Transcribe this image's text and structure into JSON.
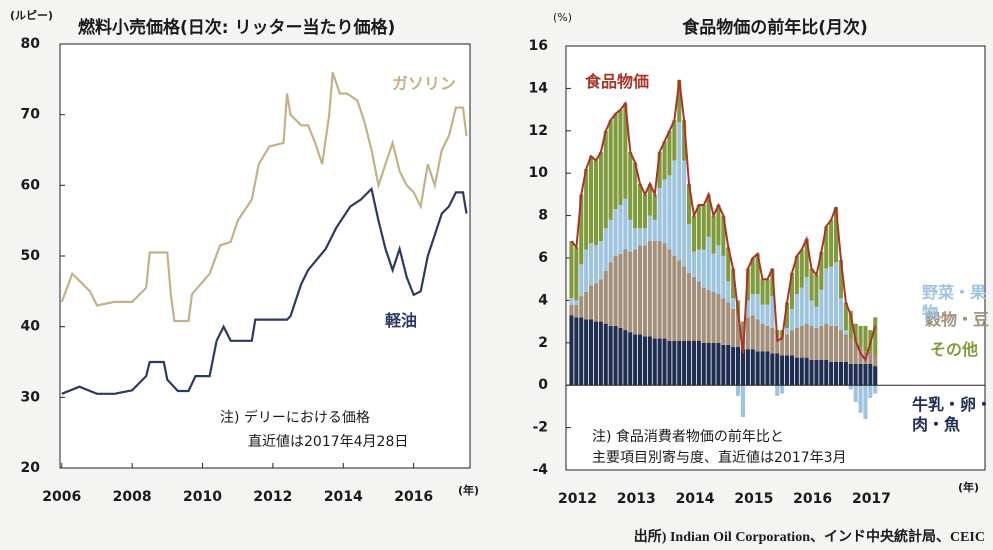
{
  "chart_data": [
    {
      "type": "line",
      "title": "燃料小売価格(日次: リッター当たり価格)",
      "y_unit": "(ルピー)",
      "x_unit": "(年)",
      "xlim": [
        2005.95,
        2017.6
      ],
      "xticks": [
        2006,
        2008,
        2010,
        2012,
        2014,
        2016
      ],
      "ylim": [
        20,
        80
      ],
      "yticks": [
        20,
        30,
        40,
        50,
        60,
        70,
        80
      ],
      "annotations": [
        "注) デリーにおける価格",
        "直近値は2017年4月28日"
      ],
      "series": [
        {
          "name": "ガソリン",
          "color": "#c5b187",
          "x": [
            2006.0,
            2006.3,
            2006.8,
            2007.0,
            2007.5,
            2008.0,
            2008.4,
            2008.5,
            2009.0,
            2009.1,
            2009.2,
            2009.6,
            2009.7,
            2010.2,
            2010.5,
            2010.8,
            2011.0,
            2011.4,
            2011.6,
            2011.9,
            2012.3,
            2012.4,
            2012.5,
            2012.8,
            2013.0,
            2013.2,
            2013.4,
            2013.6,
            2013.7,
            2013.9,
            2014.1,
            2014.4,
            2014.6,
            2014.8,
            2015.0,
            2015.2,
            2015.4,
            2015.6,
            2015.8,
            2016.0,
            2016.2,
            2016.4,
            2016.6,
            2016.8,
            2017.0,
            2017.2,
            2017.4,
            2017.5
          ],
          "values": [
            43.5,
            47.5,
            45,
            43,
            43.5,
            43.5,
            45.5,
            50.5,
            50.5,
            44.5,
            40.8,
            40.8,
            44.6,
            47.5,
            51.5,
            52,
            55,
            58,
            63,
            65.5,
            66,
            73,
            70,
            68.5,
            68.5,
            66,
            63,
            70,
            76,
            73,
            73,
            72,
            69,
            65,
            60,
            63,
            66,
            62,
            60,
            59,
            57,
            63,
            60,
            65,
            67,
            71,
            71,
            67
          ]
        },
        {
          "name": "軽油",
          "color": "#2c3a63",
          "x": [
            2006.0,
            2006.5,
            2007.0,
            2007.5,
            2008.0,
            2008.4,
            2008.5,
            2008.9,
            2009.0,
            2009.3,
            2009.6,
            2009.8,
            2010.2,
            2010.4,
            2010.6,
            2010.8,
            2011.4,
            2011.5,
            2012.4,
            2012.5,
            2012.8,
            2013.0,
            2013.5,
            2013.8,
            2014.2,
            2014.5,
            2014.8,
            2015.0,
            2015.2,
            2015.4,
            2015.6,
            2015.8,
            2016.0,
            2016.2,
            2016.4,
            2016.6,
            2016.8,
            2017.0,
            2017.2,
            2017.4,
            2017.5
          ],
          "values": [
            30.5,
            31.5,
            30.5,
            30.5,
            31,
            33,
            35,
            35,
            32.5,
            30.9,
            30.9,
            33,
            33,
            38,
            40,
            38,
            38,
            41,
            41,
            41.5,
            46,
            48,
            51,
            54,
            57,
            58,
            59.5,
            55,
            51,
            48,
            51,
            47,
            44.5,
            45,
            50,
            53,
            56,
            57,
            59,
            59,
            56
          ]
        }
      ]
    },
    {
      "type": "bar",
      "stacked": true,
      "title": "食品物価の前年比(月次)",
      "y_unit": "(%)",
      "x_unit": "(年)",
      "ylim": [
        -4,
        16
      ],
      "yticks": [
        -4,
        -2,
        0,
        2,
        4,
        6,
        8,
        10,
        12,
        14,
        16
      ],
      "annotations": [
        "注) 食品消費者物価の前年比と",
        "主要項目別寄与度、直近値は2017年3月"
      ],
      "categories": [
        "2012",
        null,
        null,
        null,
        null,
        null,
        null,
        null,
        null,
        null,
        null,
        null,
        "2013",
        null,
        null,
        null,
        null,
        null,
        null,
        null,
        null,
        null,
        null,
        null,
        "2014",
        null,
        null,
        null,
        null,
        null,
        null,
        null,
        null,
        null,
        null,
        null,
        "2015",
        null,
        null,
        null,
        null,
        null,
        null,
        null,
        null,
        null,
        null,
        null,
        "2016",
        null,
        null,
        null,
        null,
        null,
        null,
        null,
        null,
        null,
        null,
        null,
        "2017",
        null,
        null
      ],
      "series": [
        {
          "name": "牛乳・卵・肉・魚",
          "color": "#1f2d50",
          "values": [
            3.3,
            3.2,
            3.2,
            3.1,
            3.1,
            3.0,
            3.0,
            2.9,
            2.8,
            2.8,
            2.7,
            2.6,
            2.5,
            2.4,
            2.4,
            2.3,
            2.3,
            2.2,
            2.2,
            2.2,
            2.1,
            2.1,
            2.1,
            2.1,
            2.1,
            2.1,
            2.1,
            2.0,
            2.0,
            2.0,
            2.0,
            1.9,
            1.9,
            1.8,
            1.8,
            1.7,
            1.7,
            1.7,
            1.6,
            1.6,
            1.6,
            1.5,
            1.5,
            1.4,
            1.4,
            1.4,
            1.3,
            1.3,
            1.3,
            1.2,
            1.2,
            1.2,
            1.2,
            1.1,
            1.1,
            1.1,
            1.1,
            1.0,
            1.0,
            1.0,
            1.0,
            1.0,
            0.9
          ]
        },
        {
          "name": "穀物・豆",
          "color": "#a38f7a",
          "values": [
            0.5,
            0.6,
            1.0,
            1.3,
            1.6,
            1.8,
            2.0,
            2.5,
            3.0,
            3.3,
            3.5,
            3.8,
            3.8,
            4.0,
            4.2,
            4.3,
            4.5,
            4.6,
            4.6,
            4.5,
            4.3,
            4.0,
            3.8,
            3.5,
            3.2,
            3.0,
            2.8,
            2.6,
            2.5,
            2.4,
            2.3,
            2.2,
            2.0,
            1.8,
            1.5,
            1.2,
            1.5,
            1.6,
            1.5,
            1.3,
            1.2,
            1.2,
            0.8,
            0.8,
            1.0,
            1.2,
            1.4,
            1.5,
            1.6,
            1.6,
            1.5,
            1.6,
            1.7,
            1.7,
            1.7,
            1.5,
            1.3,
            1.2,
            1.0,
            0.8,
            0.6,
            0.6,
            0.5
          ]
        },
        {
          "name": "野菜・果物",
          "color": "#9ec4e0",
          "values": [
            0.3,
            0.2,
            1.5,
            2.0,
            2.0,
            1.8,
            1.8,
            2.0,
            2.0,
            2.2,
            2.3,
            2.4,
            1.5,
            1.0,
            0.8,
            0.8,
            1.2,
            1.0,
            2.5,
            3.0,
            3.5,
            4.5,
            6.5,
            5.0,
            2.3,
            1.2,
            1.5,
            1.8,
            2.5,
            1.8,
            2.3,
            2.0,
            1.0,
            0.5,
            -0.5,
            -1.5,
            0.8,
            1.0,
            1.2,
            0.9,
            1.0,
            1.5,
            -0.5,
            -0.4,
            0.3,
            1.0,
            1.6,
            1.8,
            2.2,
            1.2,
            1.0,
            1.7,
            2.6,
            2.8,
            3.0,
            1.5,
            0.2,
            -0.2,
            -0.8,
            -1.3,
            -1.6,
            -0.6,
            -0.4
          ]
        },
        {
          "name": "その他",
          "color": "#7f9b3c",
          "values": [
            2.7,
            2.5,
            3.3,
            3.8,
            4.1,
            4.0,
            4.2,
            4.6,
            4.7,
            4.5,
            4.5,
            4.5,
            3.2,
            3.1,
            2.1,
            1.6,
            1.5,
            1.2,
            1.7,
            1.8,
            2.1,
            1.9,
            2.0,
            1.9,
            1.9,
            1.7,
            2.1,
            2.1,
            2.0,
            1.8,
            1.9,
            1.9,
            1.6,
            1.4,
            0.7,
            0.1,
            1.5,
            1.7,
            1.9,
            1.2,
            1.2,
            1.3,
            0.3,
            0.4,
            1.2,
            1.7,
            1.8,
            1.8,
            1.8,
            1.5,
            1.5,
            1.8,
            2.0,
            2.2,
            2.6,
            1.8,
            1.3,
            1.3,
            0.9,
            1.0,
            1.2,
            1.0,
            1.8
          ]
        },
        {
          "name": "食品物価",
          "color": "#a8342a",
          "type": "line",
          "values": [
            6.8,
            6.5,
            9.0,
            10.2,
            10.8,
            10.6,
            11.0,
            12.0,
            12.5,
            12.8,
            13.0,
            13.3,
            11.0,
            10.5,
            9.5,
            9.0,
            9.5,
            9.0,
            11.0,
            11.5,
            12.0,
            12.5,
            14.4,
            12.5,
            9.5,
            8.0,
            8.5,
            8.5,
            9.0,
            8.0,
            8.5,
            8.0,
            6.5,
            5.5,
            3.5,
            1.5,
            5.5,
            6.0,
            6.2,
            5.0,
            5.0,
            5.5,
            2.1,
            2.2,
            3.9,
            5.3,
            6.1,
            6.4,
            6.9,
            5.5,
            5.2,
            6.3,
            7.5,
            7.8,
            8.4,
            5.9,
            3.9,
            3.3,
            2.1,
            1.5,
            1.2,
            2.0,
            2.8
          ]
        }
      ]
    }
  ],
  "source": "出所) Indian Oil Corporation、インド中央統計局、CEIC"
}
